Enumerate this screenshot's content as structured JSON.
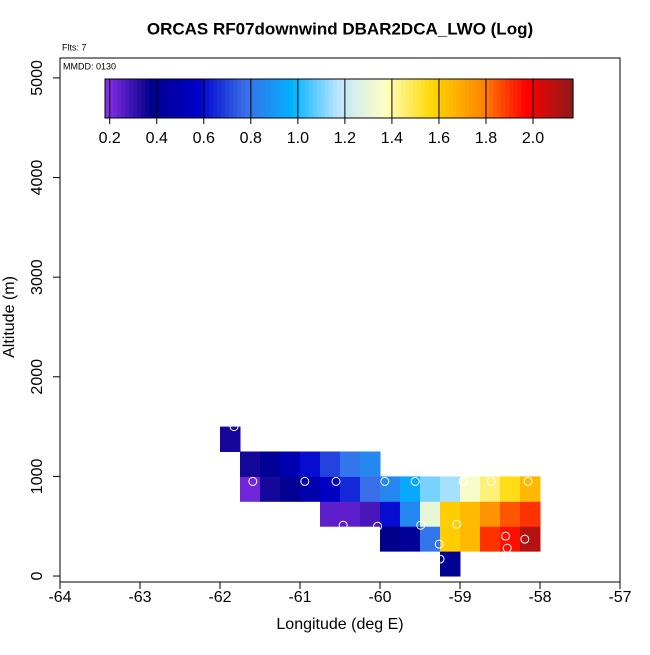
{
  "chart_data": {
    "type": "heatmap",
    "title": "ORCAS RF07downwind DBAR2DCA_LWO (Log)",
    "annotations": [
      "Flts: 7",
      "MMDD: 0130"
    ],
    "xlabel": "Longitude (deg E)",
    "ylabel": "Altitude (m)",
    "xlim": [
      -64,
      -57
    ],
    "ylim": [
      -60,
      5200
    ],
    "xticks": [
      -64,
      -63,
      -62,
      -61,
      -60,
      -59,
      -58,
      -57
    ],
    "yticks": [
      0,
      1000,
      2000,
      3000,
      4000,
      5000
    ],
    "xbins": [
      -62,
      -61.75,
      -61.5,
      -61.25,
      -61,
      -60.75,
      -60.5,
      -60.25,
      -60,
      -59.75,
      -59.5,
      -59.25,
      -59,
      -58.75,
      -58.5,
      -58.25,
      -58
    ],
    "ybins": [
      0,
      250,
      500,
      750,
      1000,
      1250,
      1500
    ],
    "z": [
      [
        null,
        null,
        null,
        null,
        null,
        null,
        null,
        null,
        null,
        null,
        null,
        0.4,
        null,
        null,
        null,
        null
      ],
      [
        null,
        null,
        null,
        null,
        null,
        null,
        null,
        null,
        0.38,
        0.42,
        0.8,
        1.6,
        1.65,
        1.9,
        1.95,
        2.1
      ],
      [
        null,
        null,
        null,
        null,
        null,
        0.25,
        0.25,
        0.28,
        0.6,
        0.85,
        1.3,
        1.6,
        1.65,
        1.75,
        1.85,
        1.9
      ],
      [
        null,
        0.22,
        0.35,
        0.4,
        0.48,
        0.55,
        0.65,
        0.78,
        0.85,
        0.95,
        1.1,
        1.15,
        1.35,
        1.45,
        1.55,
        1.65
      ],
      [
        null,
        0.35,
        0.42,
        0.5,
        0.6,
        0.7,
        0.8,
        0.85,
        null,
        null,
        null,
        null,
        null,
        null,
        null,
        null
      ],
      [
        0.35,
        null,
        null,
        null,
        null,
        null,
        null,
        null,
        null,
        null,
        null,
        null,
        null,
        null,
        null,
        null
      ]
    ],
    "zlim": [
      0.18,
      2.17
    ],
    "colorscale": [
      "#8f2fee",
      "#00008b",
      "#0000cd",
      "#3a6ee8",
      "#00b2ff",
      "#bfe6ff",
      "#ffffc0",
      "#ffd700",
      "#ff8c00",
      "#ff0000",
      "#8b1a1a"
    ],
    "zticks": [
      0.2,
      0.4,
      0.6,
      0.8,
      {
        "value": 1,
        "label": "1.0"
      },
      1.2,
      1.4,
      1.6,
      1.8,
      {
        "value": 2,
        "label": "2.0"
      }
    ],
    "points": {
      "x": [
        -61.825,
        -61.59,
        -60.94,
        -60.55,
        -59.94,
        -59.56,
        -58.96,
        -58.61,
        -58.15,
        -60.46,
        -60.03,
        -59.49,
        -59.04,
        -59.26,
        -58.43,
        -58.19,
        -58.41,
        -59.25
      ],
      "y": [
        1500,
        950,
        950,
        950,
        950,
        950,
        950,
        950,
        950,
        510,
        500,
        510,
        520,
        320,
        400,
        370,
        280,
        170
      ]
    }
  }
}
